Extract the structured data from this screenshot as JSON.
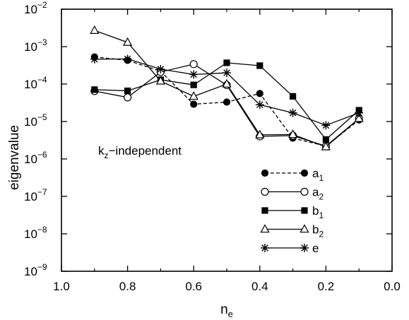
{
  "chart_data": {
    "type": "line",
    "title": "",
    "xlabel": "n",
    "xlabel_sub": "e",
    "ylabel": "eigenvalue",
    "x_axis": {
      "range": [
        1.0,
        0.0
      ],
      "reversed": true,
      "ticks": [
        1.0,
        0.8,
        0.6,
        0.4,
        0.2,
        0.0
      ],
      "tick_labels": [
        "1.0",
        "0.8",
        "0.6",
        "0.4",
        "0.2",
        "0.0"
      ]
    },
    "y_axis": {
      "scale": "log",
      "range": [
        1e-09,
        0.01
      ],
      "tick_exponents": [
        -9,
        -8,
        -7,
        -6,
        -5,
        -4,
        -3,
        -2
      ],
      "tick_base": "10"
    },
    "annotation": {
      "main": "k",
      "sub": "z",
      "rest": "−independent"
    },
    "legend": {
      "placement": "lower-right"
    },
    "series": [
      {
        "name": "a",
        "name_sub": "1",
        "marker": "filled-circle",
        "dash": true,
        "x": [
          0.9,
          0.8,
          0.7,
          0.6,
          0.5,
          0.4,
          0.3,
          0.2,
          0.1
        ],
        "y": [
          0.00053,
          0.00043,
          0.00022,
          2.9e-05,
          3.3e-05,
          5.6e-05,
          3.6e-06,
          2.2e-06,
          1.1e-05
        ]
      },
      {
        "name": "a",
        "name_sub": "2",
        "marker": "open-circle",
        "dash": false,
        "x": [
          0.9,
          0.8,
          0.7,
          0.6,
          0.5,
          0.4,
          0.3,
          0.2,
          0.1
        ],
        "y": [
          6.5e-05,
          4.4e-05,
          0.00021,
          0.00034,
          9.4e-05,
          4e-06,
          4.2e-06,
          2.2e-06,
          1.2e-05
        ]
      },
      {
        "name": "b",
        "name_sub": "1",
        "marker": "filled-square",
        "dash": false,
        "x": [
          0.9,
          0.8,
          0.7,
          0.6,
          0.5,
          0.4,
          0.3,
          0.2,
          0.1
        ],
        "y": [
          7.1e-05,
          6.6e-05,
          0.00013,
          9.5e-05,
          0.00037,
          0.00031,
          4.7e-05,
          3.3e-06,
          2e-05
        ]
      },
      {
        "name": "b",
        "name_sub": "2",
        "marker": "open-triangle",
        "dash": false,
        "x": [
          0.9,
          0.8,
          0.7,
          0.6,
          0.5,
          0.4,
          0.3,
          0.2,
          0.1
        ],
        "y": [
          0.0027,
          0.0013,
          0.00012,
          4.7e-05,
          0.0001,
          4.4e-06,
          4.5e-06,
          2.1e-06,
          1.2e-05
        ]
      },
      {
        "name": "e",
        "name_sub": "",
        "marker": "asterisk",
        "dash": false,
        "x": [
          0.9,
          0.8,
          0.7,
          0.6,
          0.5,
          0.4,
          0.3,
          0.2,
          0.1
        ],
        "y": [
          0.00046,
          0.00047,
          0.00025,
          0.00018,
          0.0002,
          2.8e-05,
          1.7e-05,
          7.9e-06,
          1.7e-05
        ]
      }
    ]
  }
}
